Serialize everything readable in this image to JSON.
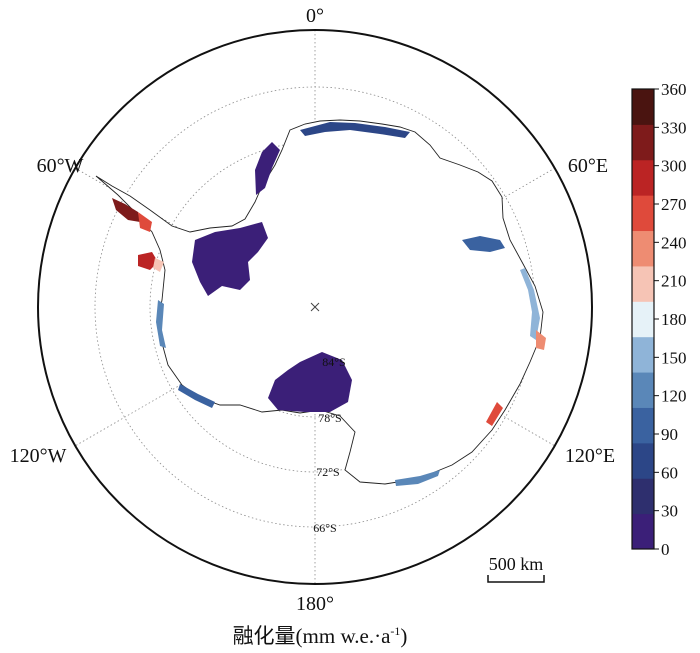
{
  "map": {
    "meridian_labels": {
      "top": "0°",
      "bottom": "180°",
      "upper_left": "60°W",
      "upper_right": "60°E",
      "lower_left": "120°W",
      "lower_right": "120°E"
    },
    "latitude_labels": [
      "84°S",
      "78°S",
      "72°S",
      "66°S"
    ],
    "scale_bar": "500 km",
    "caption_main": "融化量(mm w.e.·a",
    "caption_sup": "-1",
    "caption_end": ")"
  },
  "colorbar": {
    "ticks": [
      "360",
      "330",
      "300",
      "270",
      "240",
      "210",
      "180",
      "150",
      "120",
      "90",
      "60",
      "30",
      "0"
    ],
    "colors_bottom_to_top": [
      "#3b1f78",
      "#2e2f6e",
      "#2c4687",
      "#3a62a0",
      "#5a87b8",
      "#8fb4d8",
      "#e6f2f8",
      "#f6c4b5",
      "#ee8c72",
      "#df4a3b",
      "#bb2424",
      "#7e1b1b",
      "#4a1410"
    ]
  }
}
